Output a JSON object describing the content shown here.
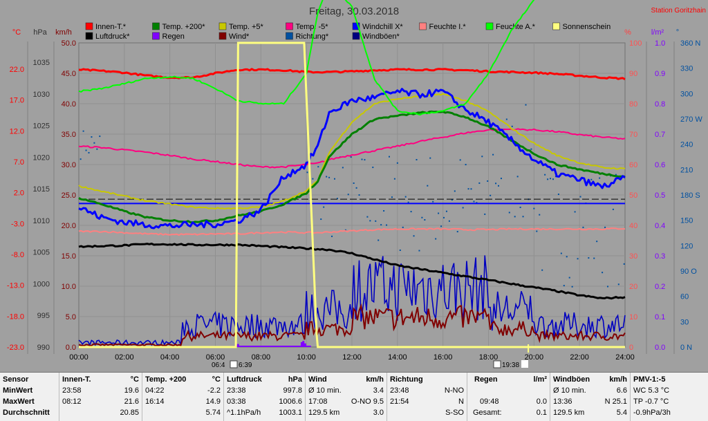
{
  "title": "Freitag, 30.03.2018",
  "station": "Station Goritzhain",
  "axis_units": {
    "temp": "°C",
    "pressure": "hPa",
    "wind": "km/h",
    "humidity": "%",
    "rain": "l/m²",
    "direction": "°"
  },
  "legend": [
    {
      "label": "Innen-T.*",
      "color": "#ff0000"
    },
    {
      "label": "Temp. +200*",
      "color": "#008000"
    },
    {
      "label": "Temp. +5*",
      "color": "#c8c800"
    },
    {
      "label": "Temp. -5*",
      "color": "#ff0080"
    },
    {
      "label": "Windchill X*",
      "color": "#0000ff"
    },
    {
      "label": "Feuchte I.*",
      "color": "#ff8080"
    },
    {
      "label": "Feuchte A.*",
      "color": "#00ff00"
    },
    {
      "label": "Sonnenschein",
      "color": "#ffff80"
    },
    {
      "label": "Luftdruck*",
      "color": "#000000"
    },
    {
      "label": "Regen",
      "color": "#8000ff"
    },
    {
      "label": "Wind*",
      "color": "#800000"
    },
    {
      "label": "Richtung*",
      "color": "#0050a0"
    },
    {
      "label": "Windböen*",
      "color": "#000080"
    }
  ],
  "sun_marks": {
    "sunrise": "06:4",
    "sunrise2": "6:39",
    "sunset": "19:38"
  },
  "chart_data": {
    "type": "line",
    "x_ticks": [
      "00:00",
      "02:00",
      "04:00",
      "06:00",
      "08:00",
      "10:00",
      "12:00",
      "14:00",
      "16:00",
      "18:00",
      "20:00",
      "22:00",
      "24:00"
    ],
    "axes": {
      "temp_c": [
        22.0,
        17.0,
        12.0,
        7.0,
        2.0,
        -3.0,
        -8.0,
        -13.0,
        -18.0,
        -23.0
      ],
      "pressure_hpa": [
        1035,
        1030,
        1025,
        1020,
        1015,
        1010,
        1005,
        1000,
        995,
        990
      ],
      "wind_kmh": [
        "50.0",
        "45.0",
        "40.0",
        "35.0",
        "30.0",
        "25.0",
        "20.0",
        "15.0",
        "10.0",
        "5.0",
        "0.0"
      ],
      "humidity_pct": [
        100,
        90,
        80,
        70,
        60,
        50,
        40,
        30,
        20,
        10,
        0
      ],
      "rain_lm2": [
        "1.0",
        "0.9",
        "0.8",
        "0.7",
        "0.6",
        "0.5",
        "0.4",
        "0.3",
        "0.2",
        "0.1",
        "0.0"
      ],
      "direction": [
        "360 N",
        "330",
        "300",
        "270 W",
        "240",
        "210",
        "180 S",
        "150",
        "120",
        "90 O",
        "60",
        "30",
        "0 N"
      ]
    },
    "ylim_wind": [
      0,
      50
    ],
    "x_hours": [
      0,
      1,
      2,
      3,
      4,
      5,
      6,
      7,
      8,
      9,
      10,
      10.5,
      11,
      12,
      13,
      14,
      15,
      16,
      17,
      18,
      19,
      20,
      21,
      22,
      23,
      24
    ],
    "series": [
      {
        "name": "Innen-T.*",
        "color": "#ff0000",
        "width": 3,
        "values": [
          45.6,
          45.4,
          45.1,
          44.6,
          44.3,
          44.3,
          45.0,
          45.6,
          45.6,
          45.5,
          45.2,
          45.2,
          45.2,
          45.3,
          45.5,
          45.6,
          45.6,
          45.6,
          45.5,
          45.3,
          45.2,
          45.1,
          44.9,
          44.6,
          44.3,
          44.1
        ]
      },
      {
        "name": "Temp. -5*",
        "color": "#ff0080",
        "width": 2,
        "values": [
          33.0,
          32.8,
          32.4,
          32.0,
          31.5,
          30.9,
          30.5,
          30.0,
          29.6,
          29.6,
          30.0,
          30.2,
          30.8,
          31.6,
          32.3,
          33.0,
          33.8,
          34.5,
          35.2,
          35.7,
          35.8,
          35.7,
          35.4,
          34.9,
          34.5,
          34.2
        ]
      },
      {
        "name": "Feuchte I.*",
        "color": "#ff8080",
        "width": 2,
        "values": [
          19.0,
          19.0,
          18.8,
          18.6,
          18.5,
          18.5,
          18.6,
          18.6,
          18.8,
          18.9,
          18.8,
          18.8,
          18.9,
          19.1,
          19.3,
          19.4,
          19.4,
          19.4,
          19.3,
          19.3,
          19.4,
          19.4,
          19.4,
          19.4,
          19.4,
          19.5
        ]
      },
      {
        "name": "Luftdruck*",
        "color": "#000000",
        "width": 3,
        "values": [
          16.5,
          16.6,
          16.7,
          16.9,
          16.9,
          16.8,
          16.8,
          16.8,
          16.6,
          16.4,
          16.2,
          16.1,
          16.0,
          15.4,
          14.4,
          13.4,
          12.8,
          12.2,
          11.6,
          11.0,
          10.4,
          9.8,
          9.2,
          8.5,
          8.0,
          8.2
        ]
      },
      {
        "name": "Temp. +5*",
        "color": "#c8c800",
        "width": 2,
        "values": [
          26.5,
          25.6,
          24.8,
          24.0,
          23.5,
          23.0,
          22.8,
          22.8,
          23.0,
          24.0,
          25.7,
          27.4,
          32.0,
          37.0,
          40.0,
          40.8,
          41.2,
          41.6,
          40.5,
          38.7,
          36.0,
          33.5,
          31.5,
          30.3,
          29.5,
          29.3
        ]
      },
      {
        "name": "Temp. +200*",
        "color": "#008000",
        "width": 3,
        "values": [
          24.5,
          23.5,
          22.3,
          21.3,
          20.8,
          20.6,
          20.8,
          21.6,
          22.3,
          23.5,
          25.3,
          27.3,
          31.3,
          35.0,
          37.5,
          38.0,
          38.5,
          38.7,
          37.8,
          36.2,
          34.0,
          31.8,
          30.0,
          29.2,
          28.5,
          28.0
        ]
      },
      {
        "name": "Windchill X*",
        "color": "#0000ff",
        "width": 3,
        "values": [
          23.0,
          21.3,
          20.5,
          20.1,
          19.9,
          20.1,
          20.2,
          20.8,
          22.5,
          28.0,
          30.0,
          33.0,
          38.5,
          40.5,
          41.0,
          42.0,
          41.5,
          42.0,
          39.0,
          37.0,
          34.0,
          30.8,
          28.5,
          27.5,
          26.3,
          27.8
        ]
      },
      {
        "name": "Feuchte A.*",
        "color": "#00ff00",
        "width": 2,
        "values": [
          42.0,
          42.5,
          43.3,
          44.2,
          44.4,
          44.2,
          42.5,
          40.5,
          40.0,
          40.0,
          45.0,
          55.0,
          60.0,
          56.0,
          44.0,
          38.8,
          38.3,
          38.8,
          40.0,
          45.0,
          52.0,
          57.0,
          61.5,
          64.0,
          65.0,
          64.5
        ]
      }
    ],
    "hline_wind": 23.6,
    "dashed_wind": 24.3,
    "sunshine": {
      "x": [
        0,
        6.9,
        7.0,
        9.9,
        10.45,
        10.5,
        24
      ],
      "y": [
        0,
        0,
        50,
        50,
        2.0,
        0,
        0
      ]
    }
  },
  "stats": {
    "sensor": {
      "h1": "Sensor",
      "r1": "MinWert",
      "r2": "MaxWert",
      "r3": "Durchschnitt"
    },
    "innen": {
      "title": "Innen-T.",
      "unit": "°C",
      "min_t": "23:58",
      "min_v": "19.6",
      "max_t": "08:12",
      "max_v": "21.6",
      "avg": "20.85"
    },
    "temp200": {
      "title": "Temp. +200",
      "unit": "°C",
      "min_t": "04:22",
      "min_v": "-2.2",
      "max_t": "16:14",
      "max_v": "14.9",
      "avg": "5.74"
    },
    "luft": {
      "title": "Luftdruck",
      "unit": "hPa",
      "min_t": "23:38",
      "min_v": "997.8",
      "max_t": "03:38",
      "max_v": "1006.6",
      "avg_l": "^1.1hPa/h",
      "avg": "1003.1"
    },
    "wind": {
      "title": "Wind",
      "unit": "km/h",
      "min_t": "Ø 10 min.",
      "min_v": "3.4",
      "max_t": "17:08",
      "max_v": "O-NO 9.5",
      "avg_l": "129.5 km",
      "avg": "3.0"
    },
    "richt": {
      "title": "Richtung",
      "unit": "",
      "min_t": "23:48",
      "min_v": "N-NO",
      "max_t": "21:54",
      "max_v": "N",
      "avg": "S-SO"
    },
    "regen": {
      "title": "Regen",
      "unit": "l/m²",
      "max_t": "09:48",
      "max_v": "0.0",
      "avg_l": "Gesamt:",
      "avg": "0.1"
    },
    "boeen": {
      "title": "Windböen",
      "unit": "km/h",
      "min_t": "Ø 10 min.",
      "min_v": "6.6",
      "max_t": "13:36",
      "max_v": "N 25.1",
      "avg_l": "129.5 km",
      "avg": "5.4"
    },
    "pmv": {
      "title": "PMV-1:-5",
      "r1": "WC 5.3 °C",
      "r2": "TP -0.7 °C",
      "r3": "-0.9hPa/3h"
    }
  }
}
